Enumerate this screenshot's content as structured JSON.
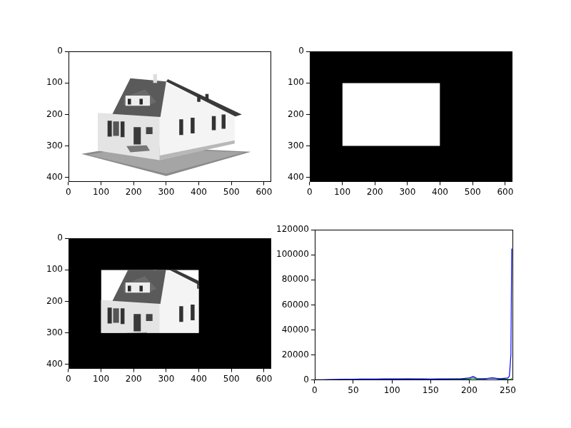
{
  "chart_data": [
    {
      "type": "image",
      "xlim": [
        0,
        620
      ],
      "ylim": [
        413,
        0
      ],
      "xticks": [
        0,
        100,
        200,
        300,
        400,
        500,
        600
      ],
      "yticks": [
        0,
        100,
        200,
        300,
        400
      ],
      "grid": false
    },
    {
      "type": "mask",
      "xlim": [
        0,
        620
      ],
      "ylim": [
        413,
        0
      ],
      "xticks": [
        0,
        100,
        200,
        300,
        400,
        500,
        600
      ],
      "yticks": [
        0,
        100,
        200,
        300,
        400
      ],
      "grid": false,
      "mask": {
        "x": [
          100,
          400
        ],
        "y": [
          100,
          300
        ]
      }
    },
    {
      "type": "masked",
      "xlim": [
        0,
        620
      ],
      "ylim": [
        413,
        0
      ],
      "xticks": [
        0,
        100,
        200,
        300,
        400,
        500,
        600
      ],
      "yticks": [
        0,
        100,
        200,
        300,
        400
      ],
      "grid": false,
      "mask": {
        "x": [
          100,
          400
        ],
        "y": [
          100,
          300
        ]
      }
    },
    {
      "type": "line",
      "x": [
        0,
        10,
        20,
        30,
        40,
        50,
        60,
        70,
        80,
        90,
        100,
        110,
        120,
        130,
        140,
        150,
        160,
        170,
        180,
        190,
        200,
        205,
        210,
        220,
        230,
        240,
        250,
        252,
        254,
        255
      ],
      "series": [
        {
          "color": "#0000ff",
          "values": [
            100,
            200,
            300,
            400,
            500,
            600,
            650,
            700,
            750,
            800,
            800,
            800,
            850,
            800,
            800,
            750,
            800,
            800,
            900,
            1000,
            1500,
            2800,
            1200,
            1000,
            1500,
            1000,
            1500,
            3000,
            20000,
            105000
          ]
        },
        {
          "color": "#008000",
          "values": [
            30,
            60,
            100,
            150,
            200,
            300,
            400,
            450,
            500,
            550,
            600,
            600,
            650,
            600,
            600,
            550,
            600,
            600,
            650,
            700,
            800,
            1500,
            800,
            900,
            1600,
            700,
            400,
            300,
            500,
            1500
          ]
        }
      ],
      "xlim": [
        0,
        256
      ],
      "ylim": [
        0,
        120000
      ],
      "xticks": [
        0,
        50,
        100,
        150,
        200,
        250
      ],
      "yticks": [
        0,
        20000,
        40000,
        60000,
        80000,
        100000,
        120000
      ],
      "grid": false
    }
  ]
}
